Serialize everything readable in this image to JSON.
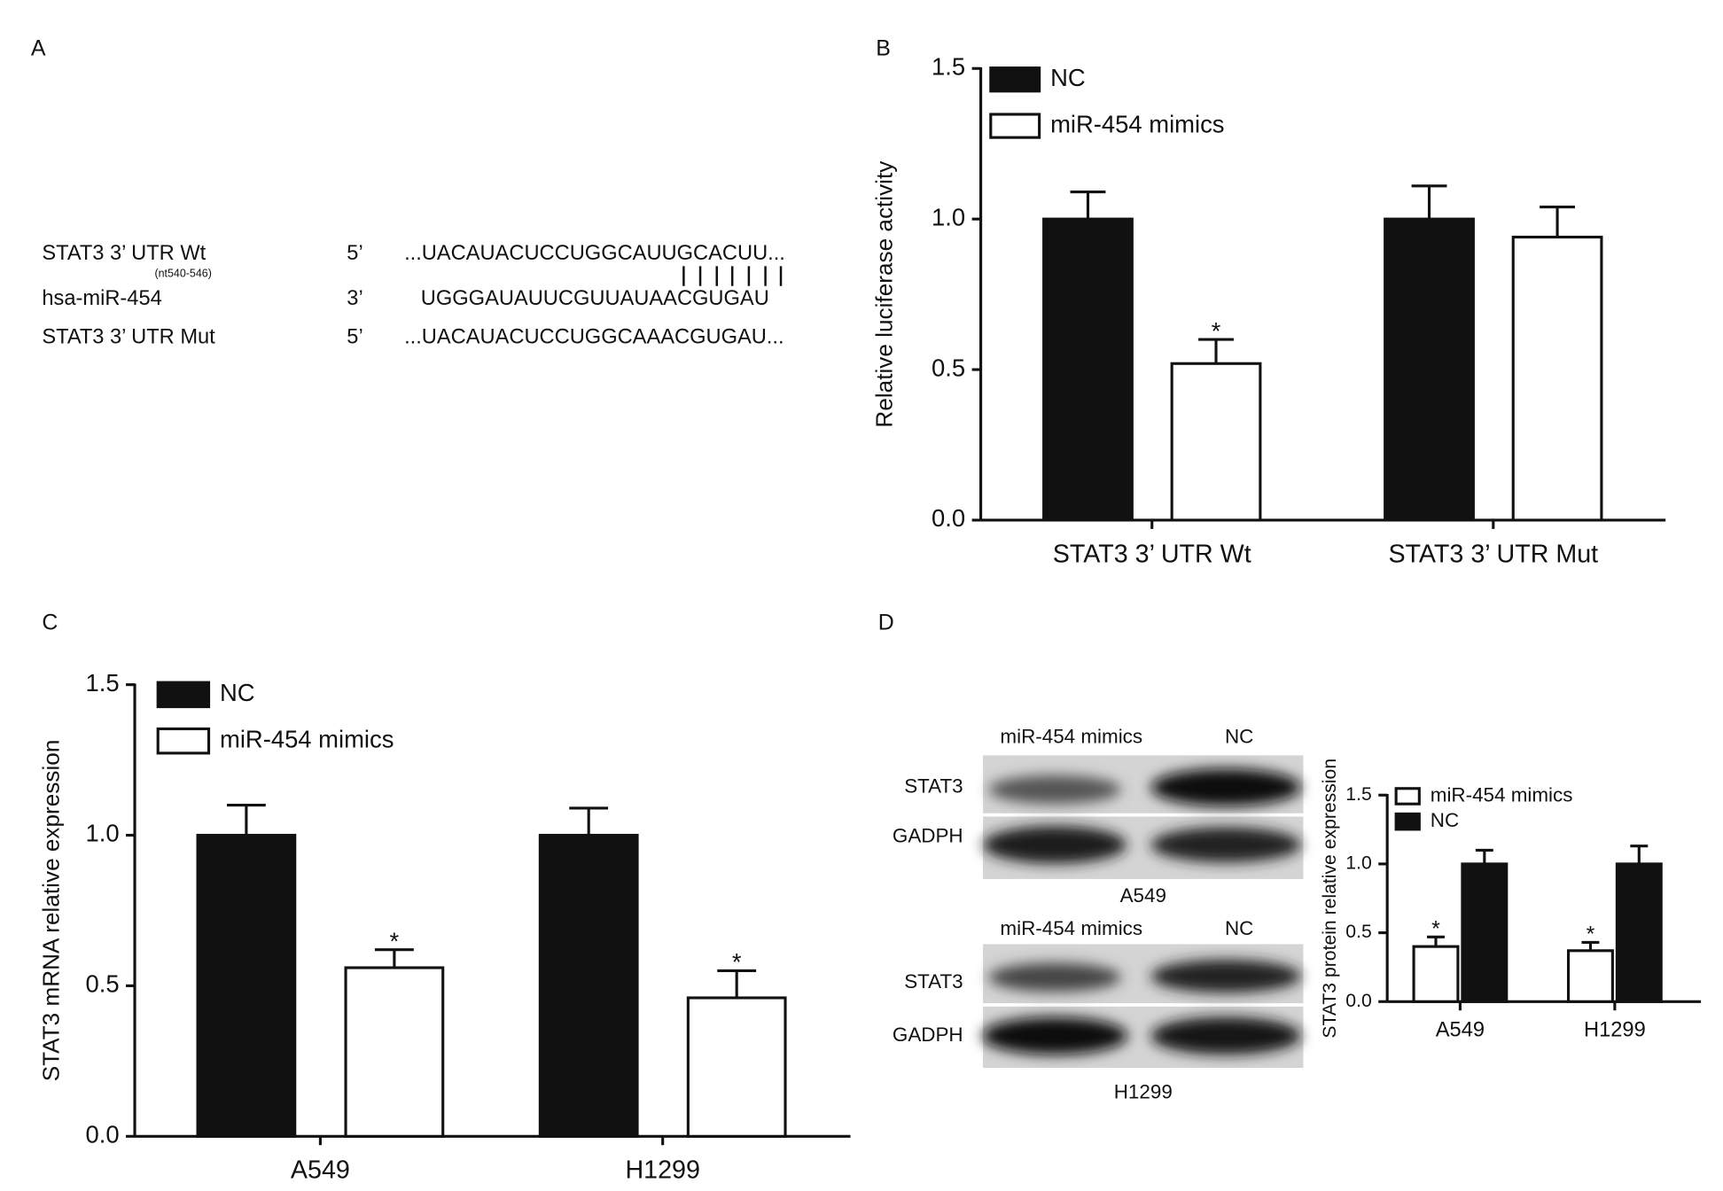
{
  "panel_labels": [
    "A",
    "B",
    "C",
    "D"
  ],
  "sequence_panel": {
    "rows": [
      {
        "name": "STAT3 3’ UTR Wt",
        "note": "(nt540-546)",
        "end": "5’",
        "sequence": "...UACAUACUCCUGGCAUUGCACUU..."
      },
      {
        "name": "hsa-miR-454",
        "end": "3’",
        "sequence": "UGGGAUAUUCGUUAUAACGUGAU"
      },
      {
        "name": "STAT3 3’ UTR Mut",
        "end": "5’",
        "sequence": "...UACAUACUCCUGGCAAACGUGAU..."
      }
    ]
  },
  "blots": [
    {
      "title": "A549",
      "lanes": [
        "miR-454 mimics",
        "NC"
      ],
      "rows": [
        "STAT3",
        "GADPH"
      ]
    },
    {
      "title": "H1299",
      "lanes": [
        "miR-454 mimics",
        "NC"
      ],
      "rows": [
        "STAT3",
        "GADPH"
      ]
    }
  ],
  "chart_data": [
    {
      "type": "bar",
      "y_label": "Relative luciferase activity",
      "categories": [
        "STAT3 3’ UTR Wt",
        "STAT3 3’ UTR Mut"
      ],
      "series": [
        {
          "name": "NC",
          "color": "#111111",
          "values": [
            1.0,
            1.0
          ],
          "errors": [
            0.09,
            0.11
          ],
          "markers": [
            null,
            null
          ]
        },
        {
          "name": "miR-454 mimics",
          "color": "#ffffff",
          "values": [
            0.52,
            0.94
          ],
          "errors": [
            0.08,
            0.1
          ],
          "markers": [
            "*",
            null
          ]
        }
      ],
      "ylim": [
        0,
        1.5
      ],
      "yticks": [
        {
          "value": 0,
          "label": "0.0"
        },
        0.5,
        {
          "value": 1,
          "label": "1.0"
        },
        1.5
      ],
      "legend": "top-left"
    },
    {
      "type": "bar",
      "y_label": "STAT3 mRNA relative expression",
      "categories": [
        "A549",
        "H1299"
      ],
      "series": [
        {
          "name": "NC",
          "color": "#111111",
          "values": [
            1.0,
            1.0
          ],
          "errors": [
            0.1,
            0.09
          ],
          "markers": [
            null,
            null
          ]
        },
        {
          "name": "miR-454 mimics",
          "color": "#ffffff",
          "values": [
            0.56,
            0.46
          ],
          "errors": [
            0.06,
            0.09
          ],
          "markers": [
            "*",
            "*"
          ]
        }
      ],
      "ylim": [
        0,
        1.5
      ],
      "yticks": [
        {
          "value": 0,
          "label": "0.0"
        },
        0.5,
        {
          "value": 1,
          "label": "1.0"
        },
        1.5
      ],
      "legend": "top-left"
    },
    {
      "type": "bar",
      "y_label": "STAT3 protein relative expression",
      "categories": [
        "A549",
        "H1299"
      ],
      "series": [
        {
          "name": "miR-454 mimics",
          "color": "#ffffff",
          "values": [
            0.4,
            0.37
          ],
          "errors": [
            0.07,
            0.06
          ],
          "markers": [
            "*",
            "*"
          ]
        },
        {
          "name": "NC",
          "color": "#111111",
          "values": [
            1.0,
            1.0
          ],
          "errors": [
            0.1,
            0.13
          ],
          "markers": [
            null,
            null
          ]
        }
      ],
      "ylim": [
        0,
        1.5
      ],
      "yticks": [
        {
          "value": 0,
          "label": "0.0"
        },
        0.5,
        {
          "value": 1,
          "label": "1.0"
        },
        1.5
      ],
      "legend": "top-left"
    }
  ]
}
